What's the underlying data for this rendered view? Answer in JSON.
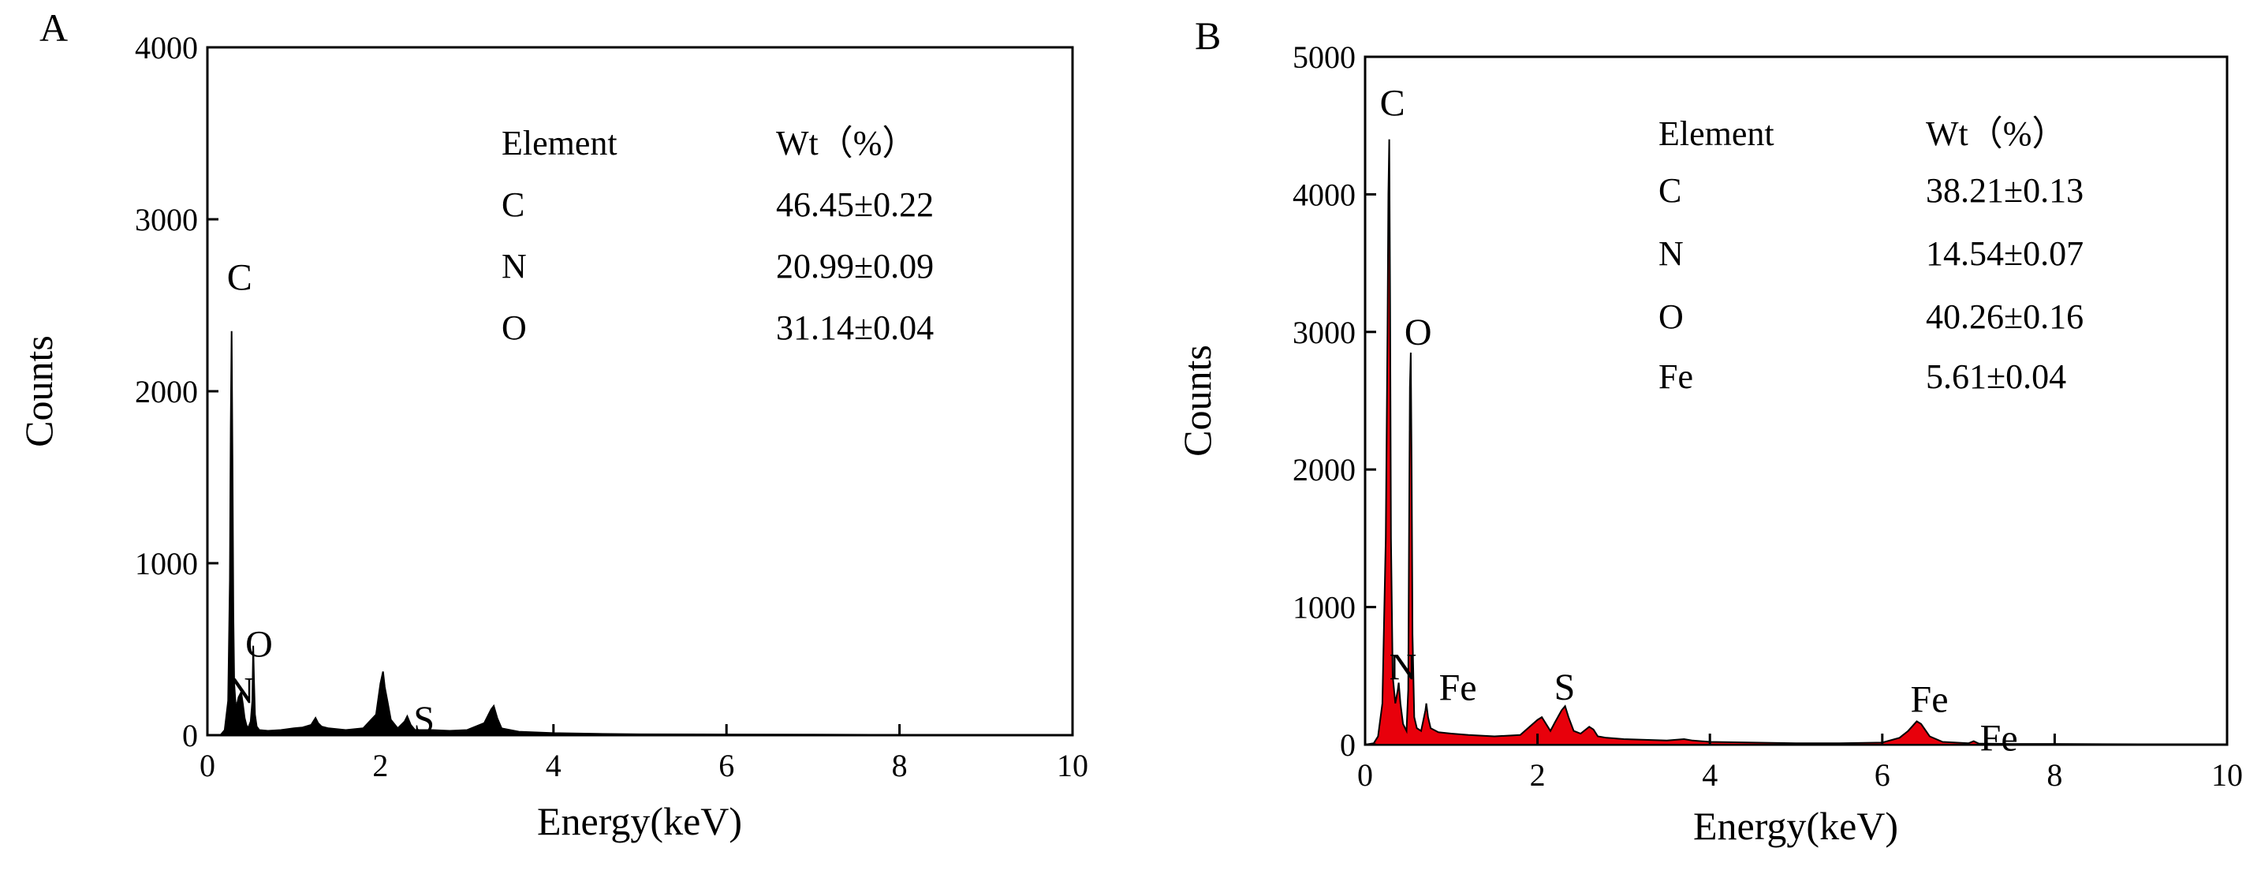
{
  "chart_data": [
    {
      "type": "area",
      "panel_label": "A",
      "xlabel": "Energy(keV)",
      "ylabel": "Counts",
      "xlim": [
        0,
        10
      ],
      "ylim": [
        0,
        4000
      ],
      "x_ticks": [
        "0",
        "2",
        "4",
        "6",
        "8",
        "10"
      ],
      "y_ticks": [
        "0",
        "1000",
        "2000",
        "3000",
        "4000"
      ],
      "fill_color": "#000000",
      "line_color": "#000000",
      "series": [
        {
          "x": [
            0,
            0.15,
            0.2,
            0.24,
            0.26,
            0.27,
            0.28,
            0.29,
            0.3,
            0.31,
            0.33,
            0.36,
            0.39,
            0.41,
            0.43,
            0.45,
            0.47,
            0.5,
            0.52,
            0.53,
            0.54,
            0.55,
            0.57,
            0.6,
            0.7,
            0.85,
            1.0,
            1.1,
            1.2,
            1.25,
            1.28,
            1.32,
            1.4,
            1.6,
            1.8,
            1.95,
            2.0,
            2.03,
            2.05,
            2.08,
            2.12,
            2.2,
            2.28,
            2.31,
            2.35,
            2.4,
            2.6,
            2.8,
            3.0,
            3.2,
            3.28,
            3.31,
            3.35,
            3.4,
            3.6,
            4.0,
            4.5,
            5.0,
            6.0,
            7.0,
            8.0,
            9.0,
            10.0
          ],
          "y": [
            0,
            0,
            30,
            200,
            900,
            1800,
            2350,
            1600,
            700,
            300,
            150,
            220,
            250,
            180,
            100,
            60,
            40,
            80,
            200,
            520,
            300,
            120,
            50,
            30,
            25,
            30,
            40,
            45,
            60,
            100,
            70,
            50,
            40,
            30,
            40,
            120,
            300,
            370,
            280,
            200,
            90,
            40,
            80,
            110,
            60,
            30,
            30,
            25,
            30,
            70,
            150,
            170,
            100,
            40,
            20,
            12,
            8,
            5,
            4,
            3,
            2,
            2,
            1
          ]
        }
      ],
      "annotations": [
        {
          "text": "C",
          "x": 0.28,
          "y": 2350
        },
        {
          "text": "O",
          "x": 0.53,
          "y": 520
        },
        {
          "text": "N",
          "x": 0.39,
          "y": 250
        },
        {
          "text": "S",
          "x": 2.31,
          "y": 110
        }
      ],
      "table": {
        "headers": [
          "Element",
          "Wt（%）"
        ],
        "rows": [
          [
            "C",
            "46.45±0.22"
          ],
          [
            "N",
            "20.99±0.09"
          ],
          [
            "O",
            "31.14±0.04"
          ]
        ]
      }
    },
    {
      "type": "area",
      "panel_label": "B",
      "xlabel": "Energy(keV)",
      "ylabel": "Counts",
      "xlim": [
        0,
        10
      ],
      "ylim": [
        0,
        5000
      ],
      "x_ticks": [
        "0",
        "2",
        "4",
        "6",
        "8",
        "10"
      ],
      "y_ticks": [
        "0",
        "1000",
        "2000",
        "3000",
        "4000",
        "5000"
      ],
      "fill_color": "#e8000b",
      "line_color": "#000000",
      "series": [
        {
          "x": [
            0,
            0.1,
            0.15,
            0.2,
            0.24,
            0.26,
            0.27,
            0.28,
            0.29,
            0.3,
            0.32,
            0.35,
            0.38,
            0.39,
            0.41,
            0.44,
            0.48,
            0.5,
            0.51,
            0.52,
            0.53,
            0.54,
            0.55,
            0.57,
            0.6,
            0.65,
            0.7,
            0.71,
            0.73,
            0.76,
            0.85,
            1.0,
            1.2,
            1.5,
            1.8,
            2.0,
            2.05,
            2.1,
            2.15,
            2.2,
            2.28,
            2.32,
            2.36,
            2.42,
            2.5,
            2.6,
            2.65,
            2.7,
            2.8,
            3.0,
            3.5,
            3.7,
            3.8,
            4.0,
            4.5,
            5.0,
            5.5,
            6.0,
            6.2,
            6.3,
            6.4,
            6.45,
            6.55,
            6.7,
            7.0,
            7.06,
            7.12,
            7.5,
            8.0,
            9.0,
            10.0
          ],
          "y": [
            0,
            10,
            60,
            300,
            1500,
            3000,
            4000,
            4400,
            3200,
            1500,
            500,
            300,
            400,
            450,
            300,
            150,
            100,
            400,
            1500,
            2600,
            2850,
            2000,
            800,
            200,
            120,
            100,
            250,
            300,
            200,
            120,
            90,
            80,
            70,
            60,
            70,
            180,
            200,
            150,
            100,
            160,
            250,
            280,
            200,
            100,
            80,
            130,
            110,
            60,
            50,
            40,
            30,
            40,
            30,
            20,
            15,
            10,
            10,
            15,
            50,
            100,
            170,
            150,
            60,
            20,
            10,
            25,
            8,
            5,
            5,
            3,
            2
          ]
        }
      ],
      "annotations": [
        {
          "text": "C",
          "x": 0.28,
          "y": 4400
        },
        {
          "text": "O",
          "x": 0.53,
          "y": 2850
        },
        {
          "text": "N",
          "x": 0.39,
          "y": 450
        },
        {
          "text": "Fe",
          "x": 0.71,
          "y": 300
        },
        {
          "text": "S",
          "x": 2.32,
          "y": 280
        },
        {
          "text": "Fe",
          "x": 6.4,
          "y": 170
        },
        {
          "text": "Fe",
          "x": 7.06,
          "y": 25
        }
      ],
      "table": {
        "headers": [
          "Element",
          "Wt（%）"
        ],
        "rows": [
          [
            "C",
            "38.21±0.13"
          ],
          [
            "N",
            "14.54±0.07"
          ],
          [
            "O",
            "40.26±0.16"
          ],
          [
            "Fe",
            "5.61±0.04"
          ]
        ]
      }
    }
  ]
}
